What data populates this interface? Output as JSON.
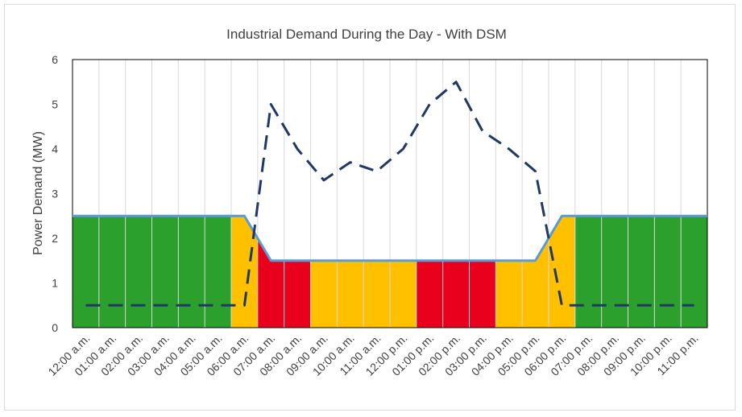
{
  "chart_data": {
    "type": "line",
    "title": "Industrial Demand During the Day - With DSM",
    "xlabel": "",
    "ylabel": "Power Demand (MW)",
    "ylim": [
      0,
      6
    ],
    "yticks": [
      0,
      1,
      2,
      3,
      4,
      5,
      6
    ],
    "grid": "vertical",
    "categories": [
      "12:00 a.m.",
      "01:00 a.m.",
      "02:00 a.m.",
      "03:00 a.m.",
      "04:00 a.m.",
      "05:00 a.m.",
      "06:00 a.m.",
      "07:00 a.m.",
      "08:00 a.m.",
      "09:00 a.m.",
      "10:00 a.m.",
      "11:00 a.m.",
      "12:00 p.m.",
      "01:00 p.m.",
      "02:00 p.m.",
      "03:00 p.m.",
      "04:00 p.m.",
      "05:00 p.m.",
      "06:00 p.m.",
      "07:00 p.m.",
      "08:00 p.m.",
      "09:00 p.m.",
      "10:00 p.m.",
      "11:00 p.m."
    ],
    "tariff_periods": [
      {
        "start": 0,
        "end": 6,
        "color": "#2ca02c"
      },
      {
        "start": 6,
        "end": 7,
        "color": "#ffc000"
      },
      {
        "start": 7,
        "end": 9,
        "color": "#e8001c"
      },
      {
        "start": 9,
        "end": 13,
        "color": "#ffc000"
      },
      {
        "start": 13,
        "end": 16,
        "color": "#e8001c"
      },
      {
        "start": 16,
        "end": 19,
        "color": "#ffc000"
      },
      {
        "start": 19,
        "end": 24,
        "color": "#2ca02c"
      }
    ],
    "limit_line": {
      "color": "#5b9bd5",
      "points": [
        [
          0,
          2.5
        ],
        [
          6.5,
          2.5
        ],
        [
          7.5,
          1.5
        ],
        [
          17.5,
          1.5
        ],
        [
          18.5,
          2.5
        ],
        [
          24,
          2.5
        ]
      ]
    },
    "series": [
      {
        "color": "#1f3864",
        "style": "dashed",
        "values": [
          0.5,
          0.5,
          0.5,
          0.5,
          0.5,
          0.5,
          0.5,
          5.0,
          4.0,
          3.3,
          3.7,
          3.5,
          4.0,
          5.0,
          5.5,
          4.4,
          4.0,
          3.5,
          0.5,
          0.5,
          0.5,
          0.5,
          0.5,
          0.5
        ]
      }
    ]
  }
}
